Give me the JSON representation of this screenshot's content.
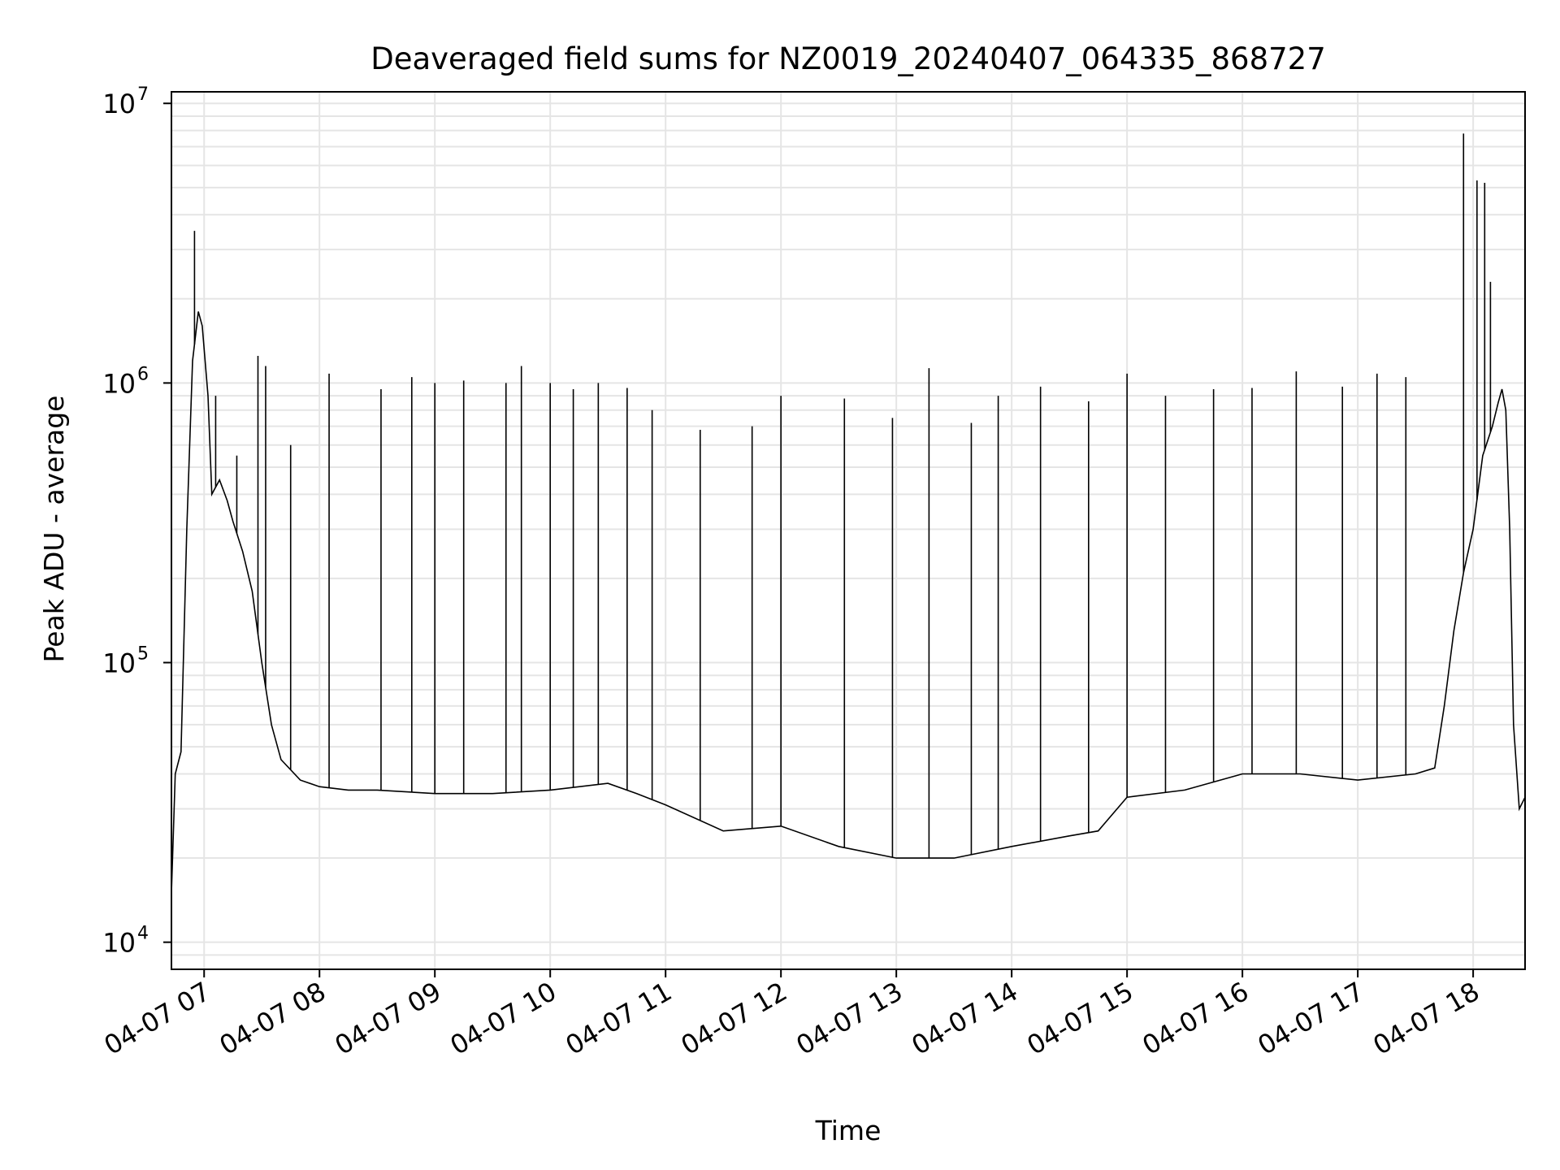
{
  "chart_data": {
    "type": "line",
    "title": "Deaveraged field sums for NZ0019_20240407_064335_868727",
    "xlabel": "Time",
    "ylabel": "Peak ADU - average",
    "yscale": "log",
    "ylim": [
      8000,
      11000000
    ],
    "xlim": [
      "2024-04-07 06:43",
      "2024-04-07 18:27"
    ],
    "grid": true,
    "legend": "none",
    "colors": {
      "line": "#000000",
      "grid": "#e5e5e5",
      "axes": "#000000",
      "background": "#ffffff"
    },
    "x_tick_labels": [
      "04-07 07",
      "04-07 08",
      "04-07 09",
      "04-07 10",
      "04-07 11",
      "04-07 12",
      "04-07 13",
      "04-07 14",
      "04-07 15",
      "04-07 16",
      "04-07 17",
      "04-07 18"
    ],
    "y_tick_labels": [
      {
        "base": "10",
        "exp": "4",
        "value": 10000
      },
      {
        "base": "10",
        "exp": "5",
        "value": 100000
      },
      {
        "base": "10",
        "exp": "6",
        "value": 1000000
      },
      {
        "base": "10",
        "exp": "7",
        "value": 10000000
      }
    ],
    "series": [
      {
        "x": [
          "2024-04-07 06:43",
          "2024-04-07 06:45",
          "2024-04-07 06:48",
          "2024-04-07 06:51",
          "2024-04-07 06:54",
          "2024-04-07 06:57",
          "2024-04-07 06:59",
          "2024-04-07 07:02",
          "2024-04-07 07:04",
          "2024-04-07 07:08",
          "2024-04-07 07:12",
          "2024-04-07 07:15",
          "2024-04-07 07:20",
          "2024-04-07 07:25",
          "2024-04-07 07:30",
          "2024-04-07 07:35",
          "2024-04-07 07:40",
          "2024-04-07 07:50",
          "2024-04-07 08:00",
          "2024-04-07 08:15",
          "2024-04-07 08:30",
          "2024-04-07 09:00",
          "2024-04-07 09:30",
          "2024-04-07 10:00",
          "2024-04-07 10:30",
          "2024-04-07 10:45",
          "2024-04-07 11:00",
          "2024-04-07 11:30",
          "2024-04-07 12:00",
          "2024-04-07 12:30",
          "2024-04-07 13:00",
          "2024-04-07 13:30",
          "2024-04-07 14:00",
          "2024-04-07 14:30",
          "2024-04-07 14:45",
          "2024-04-07 15:00",
          "2024-04-07 15:30",
          "2024-04-07 16:00",
          "2024-04-07 16:30",
          "2024-04-07 17:00",
          "2024-04-07 17:30",
          "2024-04-07 17:40",
          "2024-04-07 17:45",
          "2024-04-07 17:50",
          "2024-04-07 17:55",
          "2024-04-07 18:00",
          "2024-04-07 18:05",
          "2024-04-07 18:10",
          "2024-04-07 18:13",
          "2024-04-07 18:15",
          "2024-04-07 18:17",
          "2024-04-07 18:19",
          "2024-04-07 18:21",
          "2024-04-07 18:24",
          "2024-04-07 18:27"
        ],
        "y": [
          15000,
          40000,
          48000,
          300000,
          1200000,
          1800000,
          1600000,
          900000,
          400000,
          450000,
          380000,
          320000,
          250000,
          180000,
          100000,
          60000,
          45000,
          38000,
          36000,
          35000,
          35000,
          34000,
          34000,
          35000,
          37000,
          34000,
          31000,
          25000,
          26000,
          22000,
          20000,
          20000,
          22000,
          24000,
          25000,
          33000,
          35000,
          40000,
          40000,
          38000,
          40000,
          42000,
          70000,
          130000,
          210000,
          300000,
          550000,
          700000,
          850000,
          950000,
          800000,
          300000,
          60000,
          30000,
          33000
        ]
      }
    ],
    "spikes": {
      "x": [
        "2024-04-07 06:55",
        "2024-04-07 07:06",
        "2024-04-07 07:17",
        "2024-04-07 07:28",
        "2024-04-07 07:32",
        "2024-04-07 07:45",
        "2024-04-07 08:05",
        "2024-04-07 08:32",
        "2024-04-07 08:48",
        "2024-04-07 09:00",
        "2024-04-07 09:15",
        "2024-04-07 09:37",
        "2024-04-07 09:45",
        "2024-04-07 10:00",
        "2024-04-07 10:12",
        "2024-04-07 10:25",
        "2024-04-07 10:40",
        "2024-04-07 10:53",
        "2024-04-07 11:18",
        "2024-04-07 11:45",
        "2024-04-07 12:00",
        "2024-04-07 12:33",
        "2024-04-07 12:58",
        "2024-04-07 13:17",
        "2024-04-07 13:39",
        "2024-04-07 13:53",
        "2024-04-07 14:15",
        "2024-04-07 14:40",
        "2024-04-07 15:00",
        "2024-04-07 15:20",
        "2024-04-07 15:45",
        "2024-04-07 16:05",
        "2024-04-07 16:28",
        "2024-04-07 16:52",
        "2024-04-07 17:10",
        "2024-04-07 17:25",
        "2024-04-07 17:55",
        "2024-04-07 18:02",
        "2024-04-07 18:06",
        "2024-04-07 18:09"
      ],
      "y": [
        3500000,
        900000,
        550000,
        1250000,
        1150000,
        600000,
        1080000,
        950000,
        1050000,
        1000000,
        1020000,
        1000000,
        1150000,
        1000000,
        950000,
        1000000,
        960000,
        800000,
        680000,
        700000,
        900000,
        880000,
        750000,
        1130000,
        720000,
        900000,
        970000,
        860000,
        1080000,
        900000,
        950000,
        960000,
        1100000,
        970000,
        1080000,
        1050000,
        7800000,
        5300000,
        5200000,
        2300000
      ]
    }
  }
}
